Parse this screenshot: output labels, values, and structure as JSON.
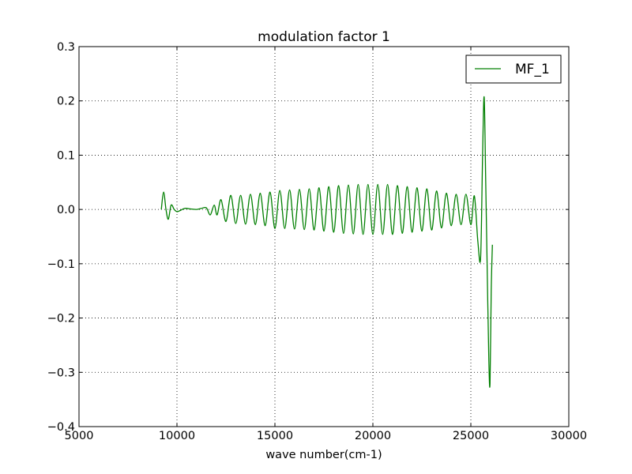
{
  "chart_data": {
    "type": "line",
    "title": "modulation factor 1",
    "xlabel": "wave number(cm-1)",
    "ylabel": "",
    "xlim": [
      5000,
      30000
    ],
    "ylim": [
      -0.4,
      0.3
    ],
    "xticks": [
      5000,
      10000,
      15000,
      20000,
      25000,
      30000
    ],
    "xtick_labels": [
      "5000",
      "10000",
      "15000",
      "20000",
      "25000",
      "30000"
    ],
    "yticks": [
      -0.4,
      -0.3,
      -0.2,
      -0.1,
      0.0,
      0.1,
      0.2,
      0.3
    ],
    "ytick_labels": [
      "−0.4",
      "−0.3",
      "−0.2",
      "−0.1",
      "0.0",
      "0.1",
      "0.2",
      "0.3"
    ],
    "grid": true,
    "legend": {
      "position": "top-right",
      "entries": [
        "MF_1"
      ]
    },
    "series": [
      {
        "name": "MF_1",
        "color": "#007f00",
        "x": [
          9200,
          9320,
          9440,
          9560,
          9700,
          9860,
          10000,
          10160,
          10400,
          10700,
          11000,
          11250,
          11500,
          11700,
          11900,
          12050,
          12250,
          12500,
          12750,
          13000,
          13250,
          13500,
          13750,
          14000,
          14250,
          14500,
          14750,
          15000,
          15250,
          15500,
          15750,
          16000,
          16250,
          16500,
          16750,
          17000,
          17250,
          17500,
          17750,
          18000,
          18250,
          18500,
          18750,
          19000,
          19250,
          19500,
          19750,
          20000,
          20250,
          20500,
          20750,
          21000,
          21250,
          21500,
          21750,
          22000,
          22250,
          22500,
          22750,
          23000,
          23250,
          23500,
          23750,
          24000,
          24250,
          24500,
          24750,
          25000,
          25180,
          25360,
          25500,
          25600,
          25680,
          25760,
          25840,
          25920,
          25980,
          26040,
          26100
        ],
        "y": [
          0.0,
          0.032,
          0.0,
          -0.018,
          0.008,
          0.0,
          -0.004,
          -0.002,
          0.002,
          0.001,
          0.0,
          0.002,
          0.003,
          -0.01,
          0.008,
          -0.01,
          0.018,
          -0.022,
          0.026,
          -0.026,
          0.026,
          -0.027,
          0.028,
          -0.028,
          0.03,
          -0.03,
          0.032,
          -0.035,
          0.035,
          -0.035,
          0.036,
          -0.036,
          0.037,
          -0.037,
          0.038,
          -0.038,
          0.04,
          -0.04,
          0.042,
          -0.042,
          0.044,
          -0.044,
          0.045,
          -0.045,
          0.046,
          -0.046,
          0.046,
          -0.046,
          0.046,
          -0.046,
          0.046,
          -0.046,
          0.044,
          -0.044,
          0.042,
          -0.042,
          0.04,
          -0.04,
          0.038,
          -0.038,
          0.034,
          -0.034,
          0.03,
          -0.03,
          0.028,
          -0.028,
          0.028,
          -0.028,
          0.025,
          -0.06,
          -0.088,
          0.1,
          0.207,
          0.05,
          -0.12,
          -0.28,
          -0.32,
          -0.15,
          -0.065
        ]
      }
    ]
  }
}
